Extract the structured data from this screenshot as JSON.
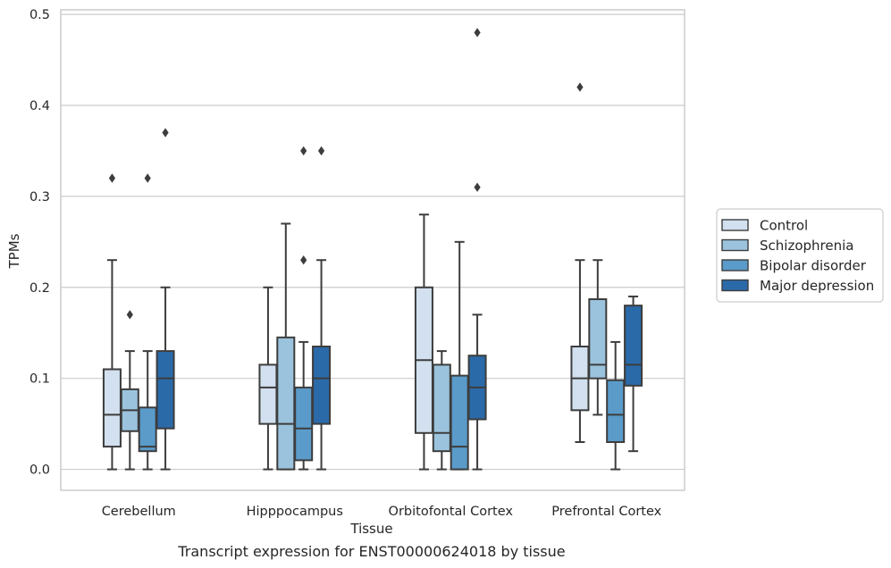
{
  "chart_data": {
    "type": "box",
    "title": "",
    "caption": "Transcript expression for ENST00000624018 by tissue",
    "xlabel": "Tissue",
    "ylabel": "TPMs",
    "ylim": [
      -0.023,
      0.505
    ],
    "yticks": [
      "0.0",
      "0.1",
      "0.2",
      "0.3",
      "0.4",
      "0.5"
    ],
    "ytick_values": [
      0,
      0.1,
      0.2,
      0.3,
      0.4,
      0.5
    ],
    "grid": "horizontal",
    "legend_position": "right",
    "categories": [
      "Cerebellum",
      "Hipppocampus",
      "Orbitofontal Cortex",
      "Prefrontal Cortex"
    ],
    "series": [
      {
        "name": "Control",
        "color": "#d2e0ef",
        "boxes": [
          {
            "whislo": 0.0,
            "q1": 0.025,
            "med": 0.06,
            "q3": 0.11,
            "whishi": 0.23,
            "fliers": [
              0.32
            ]
          },
          {
            "whislo": 0.0,
            "q1": 0.05,
            "med": 0.09,
            "q3": 0.115,
            "whishi": 0.2,
            "fliers": []
          },
          {
            "whislo": 0.0,
            "q1": 0.04,
            "med": 0.12,
            "q3": 0.2,
            "whishi": 0.28,
            "fliers": []
          },
          {
            "whislo": 0.03,
            "q1": 0.065,
            "med": 0.1,
            "q3": 0.135,
            "whishi": 0.23,
            "fliers": [
              0.42
            ]
          }
        ]
      },
      {
        "name": "Schizophrenia",
        "color": "#9bc3dd",
        "boxes": [
          {
            "whislo": 0.0,
            "q1": 0.042,
            "med": 0.065,
            "q3": 0.088,
            "whishi": 0.13,
            "fliers": [
              0.17
            ]
          },
          {
            "whislo": 0.0,
            "q1": 0.0,
            "med": 0.05,
            "q3": 0.145,
            "whishi": 0.27,
            "fliers": []
          },
          {
            "whislo": 0.0,
            "q1": 0.02,
            "med": 0.04,
            "q3": 0.115,
            "whishi": 0.13,
            "fliers": []
          },
          {
            "whislo": 0.06,
            "q1": 0.1,
            "med": 0.115,
            "q3": 0.187,
            "whishi": 0.23,
            "fliers": []
          }
        ]
      },
      {
        "name": "Bipolar disorder",
        "color": "#5a9bc9",
        "boxes": [
          {
            "whislo": 0.0,
            "q1": 0.02,
            "med": 0.025,
            "q3": 0.068,
            "whishi": 0.13,
            "fliers": [
              0.32
            ]
          },
          {
            "whislo": 0.0,
            "q1": 0.01,
            "med": 0.045,
            "q3": 0.09,
            "whishi": 0.14,
            "fliers": [
              0.23,
              0.35
            ]
          },
          {
            "whislo": 0.0,
            "q1": 0.0,
            "med": 0.025,
            "q3": 0.103,
            "whishi": 0.25,
            "fliers": []
          },
          {
            "whislo": 0.0,
            "q1": 0.03,
            "med": 0.06,
            "q3": 0.098,
            "whishi": 0.14,
            "fliers": []
          }
        ]
      },
      {
        "name": "Major depression",
        "color": "#2b6aa9",
        "boxes": [
          {
            "whislo": 0.0,
            "q1": 0.045,
            "med": 0.1,
            "q3": 0.13,
            "whishi": 0.2,
            "fliers": [
              0.37
            ]
          },
          {
            "whislo": 0.0,
            "q1": 0.05,
            "med": 0.1,
            "q3": 0.135,
            "whishi": 0.23,
            "fliers": [
              0.35
            ]
          },
          {
            "whislo": 0.0,
            "q1": 0.055,
            "med": 0.09,
            "q3": 0.125,
            "whishi": 0.17,
            "fliers": [
              0.31,
              0.48
            ]
          },
          {
            "whislo": 0.02,
            "q1": 0.092,
            "med": 0.115,
            "q3": 0.18,
            "whishi": 0.19,
            "fliers": []
          }
        ]
      }
    ]
  }
}
